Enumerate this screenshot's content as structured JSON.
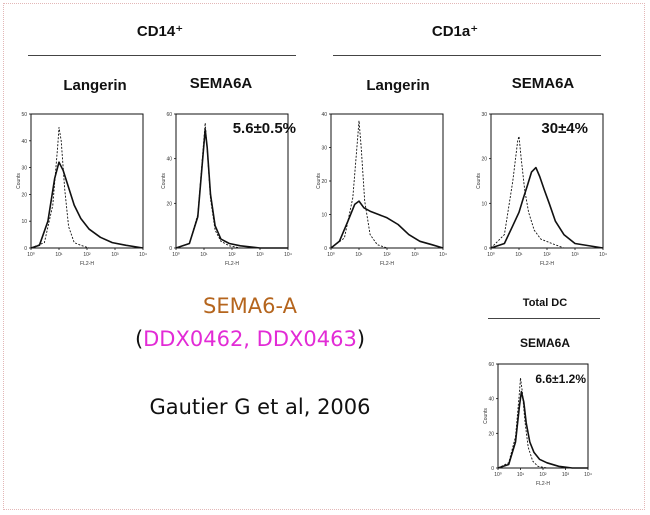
{
  "groups": [
    {
      "label": "CD14⁺"
    },
    {
      "label": "CD1a⁺"
    },
    {
      "label": "Total DC"
    }
  ],
  "annotations": {
    "gene_name": "SEMA6-A",
    "open_paren": "(",
    "ids_text": "DDX0462, DDX0463",
    "close_paren": ")",
    "citation": "Gautier G et al, 2006",
    "colors": {
      "gene_name": "#b5651d",
      "ids": "#e22bd6",
      "text": "#111111"
    }
  },
  "chart_data": [
    {
      "type": "line",
      "group": "CD14⁺",
      "title": "Langerin",
      "stat_label": "",
      "xlabel": "FL2-H",
      "ylabel": "Counts",
      "xscale": "log",
      "xlim": [
        1,
        10000
      ],
      "ylim": [
        0,
        50
      ],
      "yticks": [
        0,
        10,
        20,
        30,
        40,
        50
      ],
      "series": [
        {
          "style": "dashed",
          "x": [
            1,
            3,
            6,
            9,
            10,
            12,
            16,
            22,
            35,
            60,
            120,
            400,
            1500,
            10000
          ],
          "values": [
            0,
            2,
            16,
            38,
            45,
            40,
            22,
            8,
            2,
            1,
            0,
            0,
            0,
            0
          ]
        },
        {
          "style": "solid",
          "x": [
            1,
            2,
            4,
            7,
            10,
            14,
            20,
            35,
            60,
            120,
            300,
            800,
            2500,
            10000
          ],
          "values": [
            0,
            1,
            10,
            26,
            32,
            29,
            24,
            16,
            11,
            7,
            4,
            2,
            1,
            0
          ]
        }
      ]
    },
    {
      "type": "line",
      "group": "CD14⁺",
      "title": "SEMA6A",
      "stat_label": "5.6±0.5%",
      "xlabel": "FL2-H",
      "ylabel": "Counts",
      "xscale": "log",
      "xlim": [
        1,
        10000
      ],
      "ylim": [
        0,
        60
      ],
      "yticks": [
        0,
        20,
        40,
        60
      ],
      "series": [
        {
          "style": "dashed",
          "x": [
            1,
            3,
            6,
            9,
            11,
            13,
            17,
            25,
            40,
            80,
            200,
            1000,
            10000
          ],
          "values": [
            0,
            2,
            15,
            42,
            56,
            44,
            22,
            8,
            3,
            1,
            0,
            0,
            0
          ]
        },
        {
          "style": "solid",
          "x": [
            1,
            3,
            6,
            9,
            11,
            13,
            17,
            25,
            40,
            80,
            200,
            1000,
            10000
          ],
          "values": [
            0,
            2,
            14,
            40,
            53,
            45,
            24,
            10,
            4,
            2,
            1,
            0,
            0
          ]
        }
      ]
    },
    {
      "type": "line",
      "group": "CD1a⁺",
      "title": "Langerin",
      "stat_label": "",
      "xlabel": "FL2-H",
      "ylabel": "Counts",
      "xscale": "log",
      "xlim": [
        1,
        10000
      ],
      "ylim": [
        0,
        40
      ],
      "yticks": [
        0,
        10,
        20,
        30,
        40
      ],
      "series": [
        {
          "style": "dashed",
          "x": [
            1,
            3,
            6,
            9,
            10,
            12,
            16,
            25,
            45,
            100,
            400,
            10000
          ],
          "values": [
            0,
            3,
            15,
            33,
            38,
            30,
            14,
            4,
            1,
            0,
            0,
            0
          ]
        },
        {
          "style": "solid",
          "x": [
            1,
            2,
            4,
            7,
            10,
            15,
            25,
            50,
            100,
            250,
            600,
            1500,
            4000,
            10000
          ],
          "values": [
            0,
            2,
            8,
            13,
            14,
            12,
            11,
            10,
            9,
            7,
            4,
            2,
            1,
            0
          ]
        }
      ]
    },
    {
      "type": "line",
      "group": "CD1a⁺",
      "title": "SEMA6A",
      "stat_label": "30±4%",
      "xlabel": "FL2-H",
      "ylabel": "Counts",
      "xscale": "log",
      "xlim": [
        1,
        10000
      ],
      "ylim": [
        0,
        30
      ],
      "yticks": [
        0,
        10,
        20,
        30
      ],
      "series": [
        {
          "style": "dashed",
          "x": [
            1,
            3,
            6,
            9,
            10,
            12,
            16,
            22,
            35,
            60,
            150,
            400,
            10000
          ],
          "values": [
            0,
            3,
            15,
            24,
            25,
            20,
            13,
            8,
            4,
            2,
            1,
            0,
            0
          ]
        },
        {
          "style": "solid",
          "x": [
            1,
            3,
            6,
            10,
            14,
            20,
            28,
            40,
            55,
            80,
            120,
            200,
            400,
            1000,
            10000
          ],
          "values": [
            0,
            1,
            5,
            8,
            11,
            14,
            17,
            18,
            16,
            13,
            10,
            6,
            3,
            1,
            0
          ]
        }
      ]
    },
    {
      "type": "line",
      "group": "Total DC",
      "title": "SEMA6A",
      "stat_label": "6.6±1.2%",
      "xlabel": "FL2-H",
      "ylabel": "Counts",
      "xscale": "log",
      "xlim": [
        1,
        10000
      ],
      "ylim": [
        0,
        60
      ],
      "yticks": [
        0,
        20,
        40,
        60
      ],
      "series": [
        {
          "style": "dashed",
          "x": [
            1,
            3,
            6,
            9,
            10,
            12,
            16,
            22,
            35,
            60,
            150,
            500,
            10000
          ],
          "values": [
            0,
            3,
            18,
            44,
            52,
            44,
            26,
            12,
            4,
            1,
            0,
            0,
            0
          ]
        },
        {
          "style": "solid",
          "x": [
            1,
            3,
            6,
            9,
            11,
            14,
            18,
            26,
            40,
            70,
            150,
            500,
            2000,
            10000
          ],
          "values": [
            0,
            2,
            15,
            36,
            44,
            38,
            26,
            15,
            9,
            5,
            3,
            1,
            0,
            0
          ]
        }
      ]
    }
  ]
}
